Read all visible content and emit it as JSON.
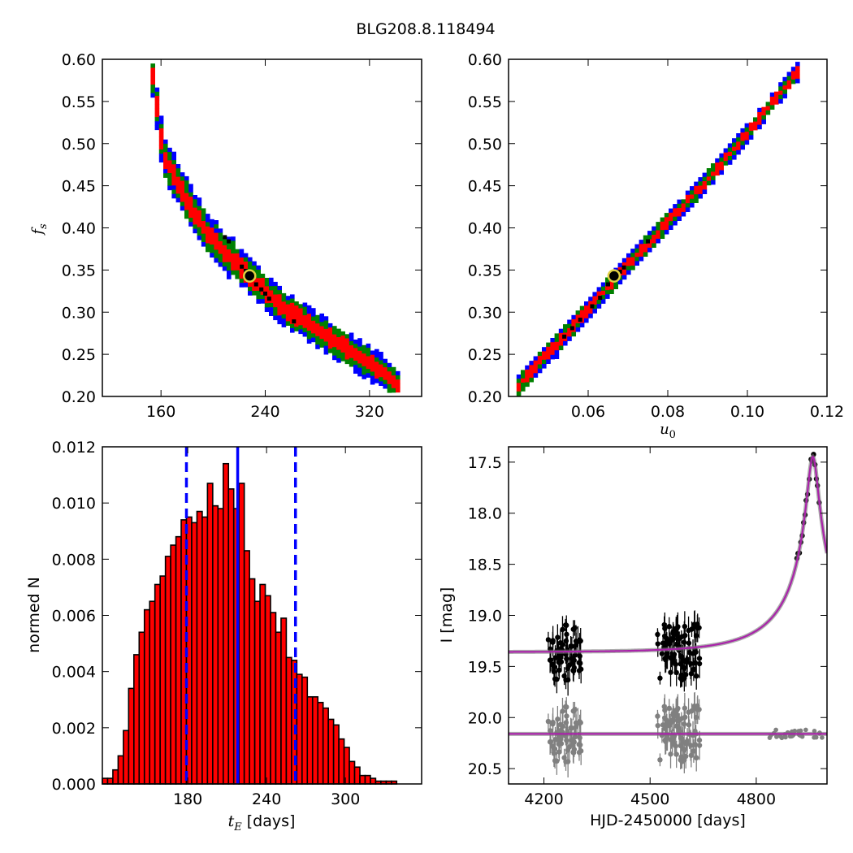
{
  "figure_title": "BLG208.8.118494",
  "chart_data": [
    {
      "type": "heatmap",
      "panel": "top-left",
      "xlabel": "",
      "ylabel": "f_s",
      "xlim": [
        115,
        360
      ],
      "ylim": [
        0.2,
        0.6
      ],
      "xticks": [
        160,
        240,
        320
      ],
      "yticks": [
        0.2,
        0.25,
        0.3,
        0.35,
        0.4,
        0.45,
        0.5,
        0.55,
        0.6
      ],
      "ytick_labels": [
        "0.20",
        "0.25",
        "0.30",
        "0.35",
        "0.40",
        "0.45",
        "0.50",
        "0.55",
        "0.60"
      ],
      "levels_colors": [
        "#0000ff",
        "#008000",
        "#ff0000"
      ],
      "ridge": [
        [
          152,
          0.585
        ],
        [
          160,
          0.49
        ],
        [
          170,
          0.46
        ],
        [
          180,
          0.43
        ],
        [
          190,
          0.405
        ],
        [
          200,
          0.385
        ],
        [
          210,
          0.37
        ],
        [
          220,
          0.355
        ],
        [
          230,
          0.34
        ],
        [
          240,
          0.325
        ],
        [
          250,
          0.31
        ],
        [
          260,
          0.3
        ],
        [
          270,
          0.29
        ],
        [
          280,
          0.28
        ],
        [
          290,
          0.27
        ],
        [
          300,
          0.26
        ],
        [
          310,
          0.25
        ],
        [
          320,
          0.24
        ],
        [
          330,
          0.23
        ],
        [
          340,
          0.215
        ]
      ],
      "black_points": [
        [
          209,
          0.389
        ],
        [
          212,
          0.384
        ],
        [
          222,
          0.354
        ],
        [
          225,
          0.349
        ],
        [
          229,
          0.343
        ],
        [
          233,
          0.333
        ],
        [
          237,
          0.327
        ],
        [
          240,
          0.322
        ],
        [
          243,
          0.316
        ],
        [
          262,
          0.289
        ]
      ],
      "best_fit": [
        228,
        0.343
      ]
    },
    {
      "type": "heatmap",
      "panel": "top-right",
      "xlabel": "u_0",
      "ylabel": "",
      "xlim": [
        0.04,
        0.12
      ],
      "ylim": [
        0.2,
        0.6
      ],
      "xticks": [
        0.06,
        0.08,
        0.1,
        0.12
      ],
      "xtick_labels": [
        "0.06",
        "0.08",
        "0.10",
        "0.12"
      ],
      "yticks": [
        0.2,
        0.25,
        0.3,
        0.35,
        0.4,
        0.45,
        0.5,
        0.55,
        0.6
      ],
      "ytick_labels": [
        "0.20",
        "0.25",
        "0.30",
        "0.35",
        "0.40",
        "0.45",
        "0.50",
        "0.55",
        "0.60"
      ],
      "ridge": [
        [
          0.042,
          0.216
        ],
        [
          0.06,
          0.308
        ],
        [
          0.07,
          0.362
        ],
        [
          0.08,
          0.412
        ],
        [
          0.09,
          0.462
        ],
        [
          0.1,
          0.518
        ],
        [
          0.112,
          0.587
        ]
      ],
      "black_points": [
        [
          0.054,
          0.271
        ],
        [
          0.056,
          0.281
        ],
        [
          0.058,
          0.291
        ],
        [
          0.061,
          0.307
        ],
        [
          0.063,
          0.317
        ],
        [
          0.065,
          0.333
        ],
        [
          0.068,
          0.348
        ],
        [
          0.069,
          0.353
        ],
        [
          0.075,
          0.384
        ]
      ],
      "best_fit": [
        0.0665,
        0.343
      ]
    },
    {
      "type": "bar",
      "panel": "bottom-left",
      "xlabel": "t_E [days]",
      "ylabel": "normed N",
      "xlim": [
        115,
        358
      ],
      "ylim": [
        0,
        0.012
      ],
      "xticks": [
        180,
        240,
        300
      ],
      "yticks": [
        0,
        0.002,
        0.004,
        0.006,
        0.008,
        0.01,
        0.012
      ],
      "ytick_labels": [
        "0.000",
        "0.002",
        "0.004",
        "0.006",
        "0.008",
        "0.010",
        "0.012"
      ],
      "bin_start": 115,
      "bin_width": 4,
      "values": [
        0.0002,
        0.0002,
        0.0005,
        0.001,
        0.0019,
        0.0034,
        0.0046,
        0.0054,
        0.0062,
        0.0065,
        0.0071,
        0.0074,
        0.0081,
        0.0085,
        0.0088,
        0.0094,
        0.0095,
        0.0093,
        0.0097,
        0.0095,
        0.0107,
        0.0099,
        0.0098,
        0.0114,
        0.0105,
        0.0098,
        0.0107,
        0.0083,
        0.0073,
        0.0065,
        0.0071,
        0.0067,
        0.0061,
        0.0054,
        0.0059,
        0.0045,
        0.0044,
        0.0039,
        0.0038,
        0.0031,
        0.0031,
        0.0029,
        0.0027,
        0.0023,
        0.0021,
        0.0016,
        0.0013,
        0.0008,
        0.0006,
        0.0003,
        0.0003,
        0.0002,
        0.0001,
        0.0001,
        0.0001,
        0.0001
      ],
      "bar_color": "#ff0000",
      "median_line": 218,
      "interval_lines": [
        179,
        262
      ],
      "line_color": "#0000ff"
    },
    {
      "type": "scatter",
      "panel": "bottom-right",
      "xlabel": "HJD-2450000 [days]",
      "ylabel": "I [mag]",
      "xlim": [
        4100,
        5000
      ],
      "ylim": [
        20.65,
        17.35
      ],
      "y_inverted": true,
      "xticks": [
        4200,
        4500,
        4800
      ],
      "yticks": [
        17.5,
        18.0,
        18.5,
        19.0,
        19.5,
        20.0,
        20.5
      ],
      "ytick_labels": [
        "17.5",
        "18.0",
        "18.5",
        "19.0",
        "19.5",
        "20.0",
        "20.5"
      ],
      "model_color": "#aa22aa",
      "data_series": [
        {
          "color": "#000000",
          "baseline": 19.36,
          "peak_t": 4960,
          "peak_mag": 17.45,
          "tE": 218,
          "u0": 0.0665,
          "fs": 0.343
        },
        {
          "color": "#808080",
          "baseline": 20.16
        }
      ]
    }
  ]
}
